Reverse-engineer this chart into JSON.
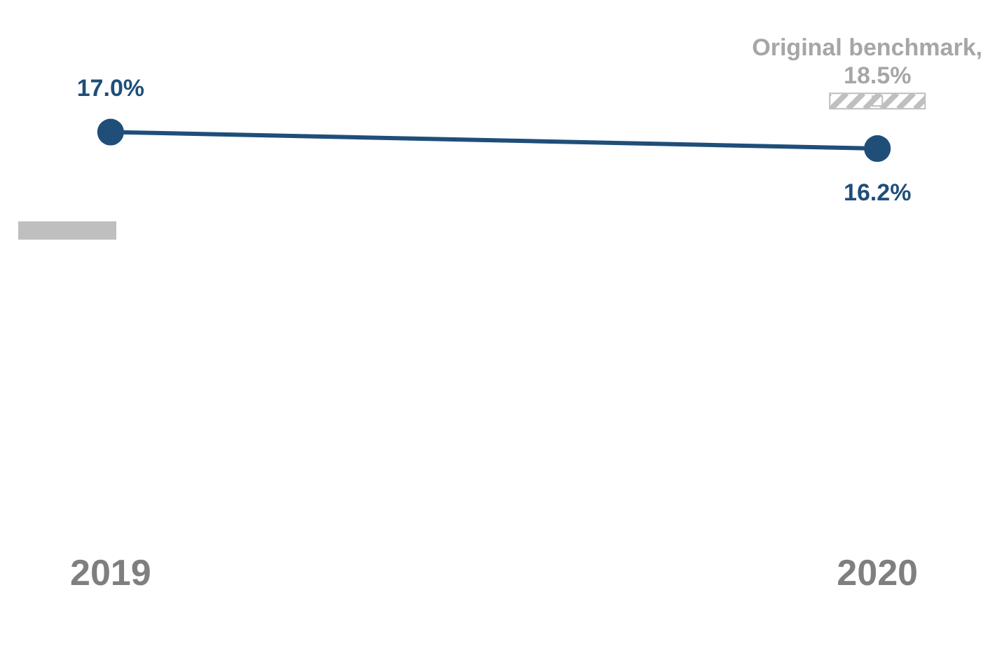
{
  "chart_data": {
    "type": "line",
    "categories": [
      "2019",
      "2020"
    ],
    "series": [
      {
        "color": "#1f4e79",
        "values": [
          17.0,
          16.2
        ],
        "marker": "circle",
        "value_labels": [
          "17.0%",
          "16.2%"
        ]
      },
      {
        "type": "scatter",
        "color": "#bfbfbf",
        "values": [
          null,
          18.5
        ],
        "marker": "square",
        "value_labels": [
          null,
          "18.5%"
        ]
      }
    ],
    "annotations": [
      {
        "text": "Original benchmark,",
        "x": "2020",
        "y": 18.5
      }
    ],
    "grid": false,
    "legend": false
  }
}
